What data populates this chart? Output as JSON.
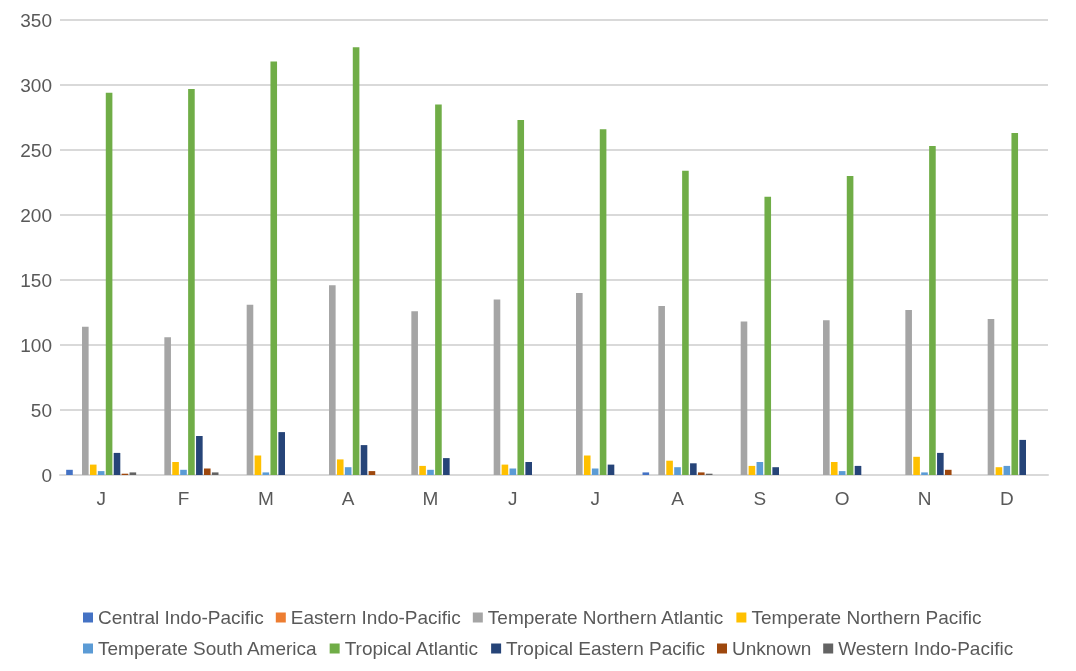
{
  "chart_data": {
    "type": "bar",
    "categories": [
      "J",
      "F",
      "M",
      "A",
      "M",
      "J",
      "J",
      "A",
      "S",
      "O",
      "N",
      "D"
    ],
    "series": [
      {
        "name": "Central Indo-Pacific",
        "color": "#4472c4",
        "values": [
          4,
          0,
          0,
          0,
          0,
          0,
          0,
          2,
          0,
          0,
          0,
          0
        ]
      },
      {
        "name": "Eastern Indo-Pacific",
        "color": "#ed7d31",
        "values": [
          0,
          0,
          0,
          0,
          0,
          0,
          0,
          0,
          0,
          0,
          0,
          0
        ]
      },
      {
        "name": "Temperate Northern Atlantic",
        "color": "#a5a5a5",
        "values": [
          114,
          106,
          131,
          146,
          126,
          135,
          140,
          130,
          118,
          119,
          127,
          120
        ]
      },
      {
        "name": "Temperate Northern Pacific",
        "color": "#ffc000",
        "values": [
          8,
          10,
          15,
          12,
          7,
          8,
          15,
          11,
          7,
          10,
          14,
          6
        ]
      },
      {
        "name": "Temperate South America",
        "color": "#5b9bd5",
        "values": [
          3,
          4,
          2,
          6,
          4,
          5,
          5,
          6,
          10,
          3,
          2,
          7
        ]
      },
      {
        "name": "Tropical Atlantic",
        "color": "#70ad47",
        "values": [
          294,
          297,
          318,
          329,
          285,
          273,
          266,
          234,
          214,
          230,
          253,
          263
        ]
      },
      {
        "name": "Tropical Eastern Pacific",
        "color": "#264478",
        "values": [
          17,
          30,
          33,
          23,
          13,
          10,
          8,
          9,
          6,
          7,
          17,
          27
        ]
      },
      {
        "name": "Unknown",
        "color": "#9e480e",
        "values": [
          1,
          5,
          0,
          3,
          0,
          0,
          0,
          2,
          0,
          0,
          4,
          0
        ]
      },
      {
        "name": "Western Indo-Pacific",
        "color": "#636363",
        "values": [
          2,
          2,
          0,
          0,
          0,
          0,
          0,
          1,
          0,
          0,
          0,
          0
        ]
      }
    ],
    "ylim": [
      0,
      350
    ],
    "yticks": [
      0,
      50,
      100,
      150,
      200,
      250,
      300,
      350
    ],
    "grid": "y",
    "legend": "bottom"
  }
}
